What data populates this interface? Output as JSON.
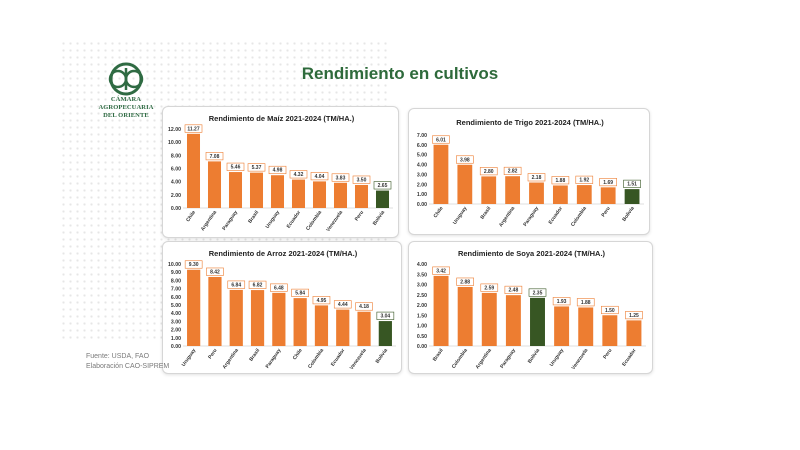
{
  "header": {
    "title": "Rendimiento en cultivos",
    "logo_line1": "CÁMARA AGROPECUARIA",
    "logo_line2": "DEL ORIENTE"
  },
  "footer": {
    "source": "Fuente: USDA, FAO",
    "prepared_by": "Elaboración CAO-SIPREM"
  },
  "colors": {
    "orange": "#ED7D31",
    "green": "#375623",
    "title_green": "#2E6A3B"
  },
  "chart_data": [
    {
      "type": "bar",
      "title": "Rendimiento de Maíz 2021-2024 (TM/HA.)",
      "categories": [
        "Chile",
        "Argentina",
        "Paraguay",
        "Brasil",
        "Uruguay",
        "Ecuador",
        "Colombia",
        "Venezuela",
        "Peru",
        "Bolivia"
      ],
      "values": [
        11.27,
        7.08,
        5.46,
        5.37,
        4.98,
        4.32,
        4.04,
        3.83,
        3.5,
        2.65
      ],
      "value_labels": [
        "11.27",
        "7.08",
        "5.46",
        "5.37",
        "4.98",
        "4.32",
        "4.04",
        "3.83",
        "3.50",
        "2.65"
      ],
      "highlight": "Bolivia",
      "ylim": [
        0,
        12
      ],
      "yticks": [
        "0.00",
        "2.00",
        "4.00",
        "6.00",
        "8.00",
        "10.00",
        "12.00"
      ],
      "grid": false
    },
    {
      "type": "bar",
      "title": "Rendimiento de Trigo 2021-2024 (TM/HA.)",
      "categories": [
        "Chile",
        "Uruguay",
        "Brasil",
        "Argentina",
        "Paraguay",
        "Ecuador",
        "Colombia",
        "Peru",
        "Bolivia"
      ],
      "values": [
        6.01,
        3.98,
        2.8,
        2.82,
        2.18,
        1.88,
        1.92,
        1.69,
        1.51
      ],
      "value_labels": [
        "6.01",
        "3.98",
        "2.80",
        "2.82",
        "2.18",
        "1.88",
        "1.92",
        "1.69",
        "1.51"
      ],
      "highlight": "Bolivia",
      "ylim": [
        0,
        7
      ],
      "yticks": [
        "0.00",
        "1.00",
        "2.00",
        "3.00",
        "4.00",
        "5.00",
        "6.00",
        "7.00"
      ],
      "grid": false
    },
    {
      "type": "bar",
      "title": "Rendimiento de Arroz 2021-2024 (TM/HA.)",
      "categories": [
        "Uruguay",
        "Peru",
        "Argentina",
        "Brasil",
        "Paraguay",
        "Chile",
        "Colombia",
        "Ecuador",
        "Venezuela",
        "Bolivia"
      ],
      "values": [
        9.3,
        8.42,
        6.84,
        6.82,
        6.48,
        5.84,
        4.95,
        4.44,
        4.18,
        3.04
      ],
      "value_labels": [
        "9.30",
        "8.42",
        "6.84",
        "6.82",
        "6.48",
        "5.84",
        "4.95",
        "4.44",
        "4.18",
        "3.04"
      ],
      "highlight": "Bolivia",
      "ylim": [
        0,
        10
      ],
      "yticks": [
        "0.00",
        "1.00",
        "2.00",
        "3.00",
        "4.00",
        "5.00",
        "6.00",
        "7.00",
        "8.00",
        "9.00",
        "10.00"
      ],
      "grid": false
    },
    {
      "type": "bar",
      "title": "Rendimiento de Soya 2021-2024 (TM/HA.)",
      "categories": [
        "Brasil",
        "Colombia",
        "Argentina",
        "Paraguay",
        "Bolivia",
        "Uruguay",
        "Venezuela",
        "Peru",
        "Ecuador"
      ],
      "values": [
        3.42,
        2.88,
        2.59,
        2.48,
        2.35,
        1.93,
        1.88,
        1.5,
        1.25
      ],
      "value_labels": [
        "3.42",
        "2.88",
        "2.59",
        "2.48",
        "2.35",
        "1.93",
        "1.88",
        "1.50",
        "1.25"
      ],
      "highlight": "Bolivia",
      "ylim": [
        0,
        4
      ],
      "yticks": [
        "0.00",
        "0.50",
        "1.00",
        "1.50",
        "2.00",
        "2.50",
        "3.00",
        "3.50",
        "4.00"
      ],
      "grid": false
    }
  ]
}
